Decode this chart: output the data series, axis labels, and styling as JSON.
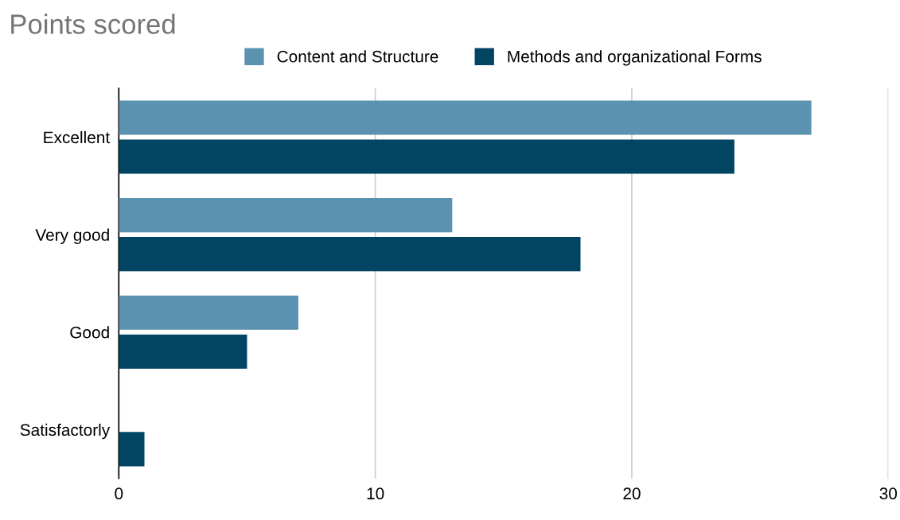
{
  "chart_data": {
    "type": "bar",
    "orientation": "horizontal",
    "title": "Points scored",
    "categories": [
      "Excellent",
      "Very good",
      "Good",
      "Satisfactorly"
    ],
    "series": [
      {
        "name": "Content and Structure",
        "color": "#5a92b0",
        "values": [
          27,
          13,
          7,
          0
        ]
      },
      {
        "name": "Methods and organizational Forms",
        "color": "#014563",
        "values": [
          24,
          18,
          5,
          1
        ]
      }
    ],
    "xlim": [
      0,
      30
    ],
    "xticks": [
      0,
      10,
      20,
      30
    ],
    "grid": "x",
    "legend": "top"
  }
}
